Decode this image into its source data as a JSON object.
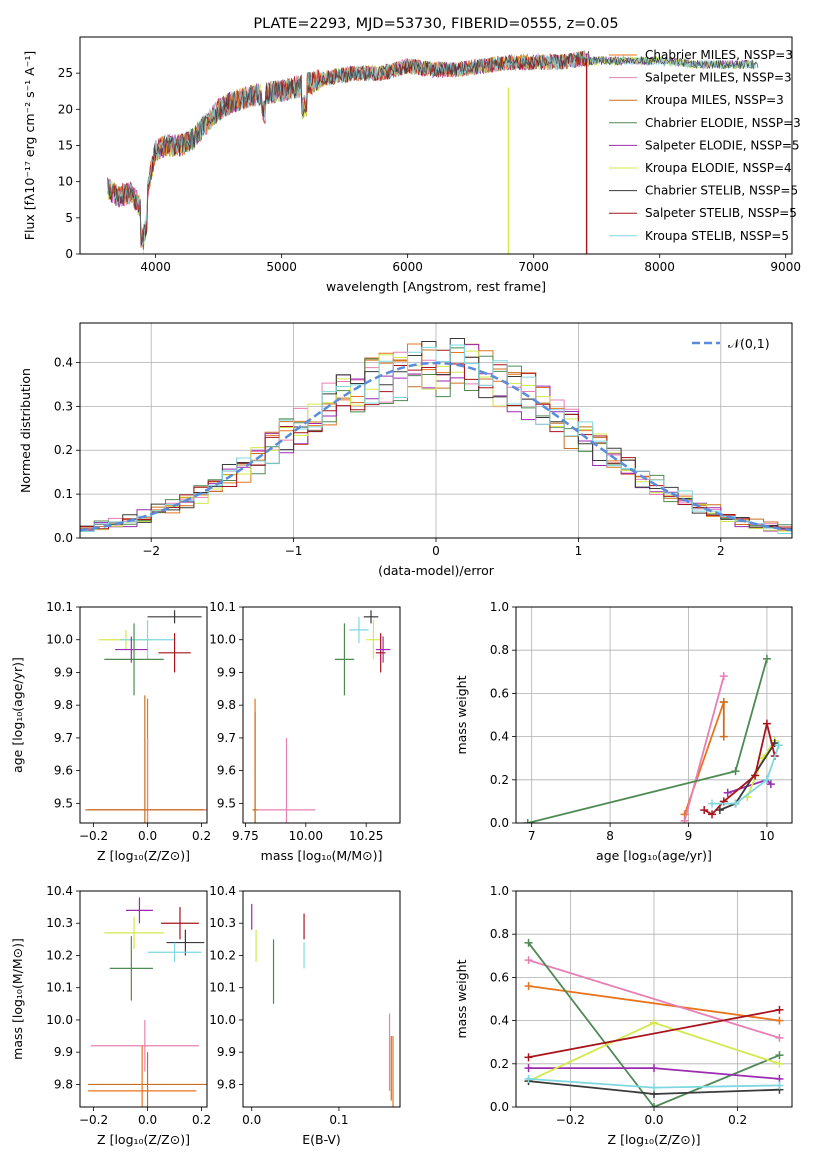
{
  "colors": [
    "#e8741e",
    "#e87fb4",
    "#c9701f",
    "#4f8a54",
    "#9b2bb0",
    "#d4e84d",
    "#3a3a3a",
    "#a8141c",
    "#7fd8e0"
  ],
  "chart_data": [
    {
      "id": "spectrum",
      "type": "line",
      "title": "PLATE=2293, MJD=53730, FIBERID=0555, z=0.05",
      "xlabel": "wavelength [Angstrom, rest frame]",
      "ylabel": "Flux [fλ10⁻¹⁷ erg cm⁻² s⁻¹ A⁻¹]",
      "xlim": [
        3400,
        9050
      ],
      "ylim": [
        0,
        30
      ],
      "xticks": [
        "4000",
        "5000",
        "6000",
        "7000",
        "8000",
        "9000"
      ],
      "yticks": [
        "0",
        "5",
        "10",
        "15",
        "20",
        "25"
      ],
      "legend": [
        "Chabrier MILES, NSSP=3",
        "Salpeter MILES, NSSP=3",
        "Kroupa MILES, NSSP=3",
        "Chabrier ELODIE, NSSP=3",
        "Salpeter ELODIE, NSSP=5",
        "Kroupa ELODIE, NSSP=4",
        "Chabrier STELIB, NSSP=5",
        "Salpeter STELIB, NSSP=5",
        "Kroupa STELIB, NSSP=5"
      ],
      "legend_position": "right",
      "series_outline": {
        "x": [
          3620,
          3700,
          3800,
          3900,
          4000,
          4100,
          4200,
          4300,
          4400,
          4500,
          4600,
          4800,
          5000,
          5200,
          5400,
          5600,
          5800,
          6000,
          6200,
          6400,
          6600,
          6800,
          7000,
          7200,
          7400,
          7600,
          7800,
          8000,
          8300,
          8700
        ],
        "y": [
          9,
          8,
          8.5,
          6,
          14.5,
          15,
          15,
          16,
          18,
          20,
          21,
          22,
          22.5,
          23.5,
          24.5,
          25,
          25,
          26,
          25.5,
          25.5,
          26,
          26.5,
          26.5,
          26.5,
          27,
          27,
          27,
          27,
          26.5,
          26.5
        ]
      }
    },
    {
      "id": "residuals",
      "type": "histogram",
      "xlabel": "(data-model)/error",
      "ylabel": "Normed distribution",
      "xlim": [
        -2.5,
        2.5
      ],
      "ylim": [
        0,
        0.49
      ],
      "xticks": [
        "−2",
        "−1",
        "0",
        "1",
        "2"
      ],
      "yticks": [
        "0.0",
        "0.1",
        "0.2",
        "0.3",
        "0.4"
      ],
      "legend": [
        "𝒩(0,1)"
      ],
      "legend_position": "top-right",
      "grid": true
    },
    {
      "id": "age_vs_Z",
      "type": "scatter",
      "xlabel": "Z [log₁₀(Z/Z⊙)]",
      "ylabel": "age  [log₁₀(age/yr)]",
      "xlim": [
        -0.25,
        0.22
      ],
      "ylim": [
        9.44,
        10.1
      ],
      "xticks": [
        "−0.2",
        "0.0",
        "0.2"
      ],
      "yticks": [
        "9.5",
        "9.6",
        "9.7",
        "9.8",
        "9.9",
        "10.0",
        "10.1"
      ],
      "points": [
        {
          "x": -0.08,
          "y": 10.0,
          "xerr": 0.1,
          "yerr": 0.03,
          "c": 5
        },
        {
          "x": 0.0,
          "y": 10.0,
          "xerr": 0.1,
          "yerr": 0.06,
          "c": 8
        },
        {
          "x": 0.1,
          "y": 10.07,
          "xerr": 0.1,
          "yerr": 0.02,
          "c": 6
        },
        {
          "x": 0.1,
          "y": 9.96,
          "xerr": 0.06,
          "yerr": 0.06,
          "c": 7
        },
        {
          "x": -0.06,
          "y": 9.97,
          "xerr": 0.06,
          "yerr": 0.04,
          "c": 4
        },
        {
          "x": -0.05,
          "y": 9.94,
          "xerr": 0.11,
          "yerr": 0.11,
          "c": 3
        },
        {
          "x": 0.0,
          "y": 9.48,
          "xerr": 0.22,
          "yerr": 0.34,
          "c": 0
        },
        {
          "x": 0.0,
          "y": 9.48,
          "xerr": 0.22,
          "yerr": 0.22,
          "c": 1
        },
        {
          "x": -0.01,
          "y": 9.48,
          "xerr": 0.22,
          "yerr": 0.35,
          "c": 2
        }
      ]
    },
    {
      "id": "age_vs_mass",
      "type": "scatter",
      "xlabel": "mass [log₁₀(M/M⊙)]",
      "ylabel": "",
      "xlim": [
        9.74,
        10.39
      ],
      "ylim": [
        9.44,
        10.1
      ],
      "xticks": [
        "9.75",
        "10.00",
        "10.25"
      ],
      "yticks": [
        "9.5",
        "9.6",
        "9.7",
        "9.8",
        "9.9",
        "10.0",
        "10.1"
      ],
      "points": [
        {
          "x": 10.22,
          "y": 10.03,
          "xerr": 0.04,
          "yerr": 0.04,
          "c": 8
        },
        {
          "x": 10.27,
          "y": 10.07,
          "xerr": 0.03,
          "yerr": 0.02,
          "c": 6
        },
        {
          "x": 10.28,
          "y": 10.0,
          "xerr": 0.03,
          "yerr": 0.06,
          "c": 5
        },
        {
          "x": 10.31,
          "y": 9.96,
          "xerr": 0.02,
          "yerr": 0.06,
          "c": 7
        },
        {
          "x": 10.32,
          "y": 9.97,
          "xerr": 0.03,
          "yerr": 0.04,
          "c": 4
        },
        {
          "x": 10.16,
          "y": 9.94,
          "xerr": 0.04,
          "yerr": 0.11,
          "c": 3
        },
        {
          "x": 9.79,
          "y": 9.48,
          "xerr": 0.01,
          "yerr": 0.34,
          "c": 0
        },
        {
          "x": 9.79,
          "y": 9.48,
          "xerr": 0.01,
          "yerr": 0.3,
          "c": 2
        },
        {
          "x": 9.92,
          "y": 9.48,
          "xerr": 0.12,
          "yerr": 0.22,
          "c": 1
        }
      ]
    },
    {
      "id": "weight_vs_age",
      "type": "line",
      "xlabel": "age  [log₁₀(age/yr)]",
      "ylabel": "mass weight",
      "xlim": [
        6.8,
        10.32
      ],
      "ylim": [
        0,
        1
      ],
      "xticks": [
        "7",
        "8",
        "9",
        "10"
      ],
      "yticks": [
        "0.0",
        "0.2",
        "0.4",
        "0.6",
        "0.8",
        "1.0"
      ],
      "grid": true,
      "series": [
        {
          "c": 0,
          "x": [
            8.95,
            9.45
          ],
          "y": [
            0.04,
            0.56
          ]
        },
        {
          "c": 1,
          "x": [
            8.95,
            9.45
          ],
          "y": [
            0.01,
            0.68
          ]
        },
        {
          "c": 2,
          "x": [
            9.45,
            9.45
          ],
          "y": [
            0.4,
            0.56
          ]
        },
        {
          "c": 3,
          "x": [
            6.95,
            9.6,
            10.0
          ],
          "y": [
            0.0,
            0.24,
            0.76
          ]
        },
        {
          "c": 4,
          "x": [
            9.5,
            10.0,
            10.05
          ],
          "y": [
            0.14,
            0.2,
            0.18
          ]
        },
        {
          "c": 5,
          "x": [
            9.75,
            9.95,
            10.1
          ],
          "y": [
            0.12,
            0.3,
            0.38
          ]
        },
        {
          "c": 6,
          "x": [
            9.4,
            9.6,
            10.1
          ],
          "y": [
            0.06,
            0.09,
            0.37
          ]
        },
        {
          "c": 7,
          "x": [
            9.2,
            9.3,
            9.45,
            9.85,
            10.0,
            10.1
          ],
          "y": [
            0.06,
            0.04,
            0.1,
            0.22,
            0.46,
            0.31
          ]
        },
        {
          "c": 8,
          "x": [
            9.3,
            9.6,
            10.0,
            10.15
          ],
          "y": [
            0.09,
            0.09,
            0.2,
            0.36
          ]
        }
      ]
    },
    {
      "id": "mass_vs_Z",
      "type": "scatter",
      "xlabel": "Z [log₁₀(Z/Z⊙)]",
      "ylabel": "mass [log₁₀(M/M⊙)]",
      "xlim": [
        -0.25,
        0.22
      ],
      "ylim": [
        9.73,
        10.4
      ],
      "xticks": [
        "−0.2",
        "0.0",
        "0.2"
      ],
      "yticks": [
        "9.8",
        "9.9",
        "10.0",
        "10.1",
        "10.2",
        "10.3",
        "10.4"
      ],
      "points": [
        {
          "x": -0.03,
          "y": 10.34,
          "xerr": 0.05,
          "yerr": 0.04,
          "c": 4
        },
        {
          "x": 0.12,
          "y": 10.3,
          "xerr": 0.07,
          "yerr": 0.05,
          "c": 7
        },
        {
          "x": -0.05,
          "y": 10.27,
          "xerr": 0.11,
          "yerr": 0.05,
          "c": 5
        },
        {
          "x": 0.14,
          "y": 10.24,
          "xerr": 0.07,
          "yerr": 0.04,
          "c": 6
        },
        {
          "x": 0.1,
          "y": 10.21,
          "xerr": 0.1,
          "yerr": 0.03,
          "c": 8
        },
        {
          "x": -0.06,
          "y": 10.16,
          "xerr": 0.08,
          "yerr": 0.1,
          "c": 3
        },
        {
          "x": -0.01,
          "y": 9.92,
          "xerr": 0.2,
          "yerr": 0.08,
          "c": 1
        },
        {
          "x": 0.0,
          "y": 9.8,
          "xerr": 0.22,
          "yerr": 0.1,
          "c": 2
        },
        {
          "x": -0.02,
          "y": 9.78,
          "xerr": 0.2,
          "yerr": 0.14,
          "c": 0
        }
      ]
    },
    {
      "id": "mass_vs_ebv",
      "type": "scatter",
      "xlabel": "E(B-V)",
      "ylabel": "",
      "xlim": [
        -0.01,
        0.17
      ],
      "ylim": [
        9.73,
        10.4
      ],
      "xticks": [
        "0.0",
        "0.1"
      ],
      "yticks": [
        "9.8",
        "9.9",
        "10.0",
        "10.1",
        "10.2",
        "10.3",
        "10.4"
      ],
      "points": [
        {
          "x": 0.0,
          "y": 10.32,
          "xerr": 0,
          "yerr": 0.04,
          "c": 4
        },
        {
          "x": 0.06,
          "y": 10.29,
          "xerr": 0,
          "yerr": 0.04,
          "c": 7
        },
        {
          "x": 0.005,
          "y": 10.23,
          "xerr": 0,
          "yerr": 0.05,
          "c": 5
        },
        {
          "x": 0.06,
          "y": 10.2,
          "xerr": 0,
          "yerr": 0.04,
          "c": 8
        },
        {
          "x": 0.025,
          "y": 10.15,
          "xerr": 0,
          "yerr": 0.1,
          "c": 3
        },
        {
          "x": 0.158,
          "y": 9.9,
          "xerr": 0,
          "yerr": 0.12,
          "c": 1
        },
        {
          "x": 0.16,
          "y": 9.85,
          "xerr": 0,
          "yerr": 0.1,
          "c": 2
        },
        {
          "x": 0.162,
          "y": 9.82,
          "xerr": 0,
          "yerr": 0.13,
          "c": 0
        }
      ]
    },
    {
      "id": "weight_vs_Z",
      "type": "line",
      "xlabel": "Z [log₁₀(Z/Z⊙)]",
      "ylabel": "mass weight",
      "xlim": [
        -0.33,
        0.33
      ],
      "ylim": [
        0,
        1
      ],
      "xticks": [
        "−0.2",
        "0.0",
        "0.2"
      ],
      "yticks": [
        "0.0",
        "0.2",
        "0.4",
        "0.6",
        "0.8",
        "1.0"
      ],
      "grid": true,
      "series": [
        {
          "c": 0,
          "x": [
            -0.3,
            0.3
          ],
          "y": [
            0.56,
            0.4
          ]
        },
        {
          "c": 1,
          "x": [
            -0.3,
            0.3
          ],
          "y": [
            0.68,
            0.32
          ]
        },
        {
          "c": 3,
          "x": [
            -0.3,
            0.0,
            0.3
          ],
          "y": [
            0.76,
            0.0,
            0.24
          ]
        },
        {
          "c": 4,
          "x": [
            -0.3,
            0.0,
            0.3
          ],
          "y": [
            0.18,
            0.18,
            0.13
          ]
        },
        {
          "c": 5,
          "x": [
            -0.3,
            0.0,
            0.3
          ],
          "y": [
            0.12,
            0.39,
            0.2
          ]
        },
        {
          "c": 6,
          "x": [
            -0.3,
            0.0,
            0.3
          ],
          "y": [
            0.12,
            0.06,
            0.08
          ]
        },
        {
          "c": 7,
          "x": [
            -0.3,
            0.3
          ],
          "y": [
            0.23,
            0.45
          ]
        },
        {
          "c": 8,
          "x": [
            -0.3,
            0.0,
            0.3
          ],
          "y": [
            0.13,
            0.09,
            0.1
          ]
        }
      ]
    }
  ]
}
